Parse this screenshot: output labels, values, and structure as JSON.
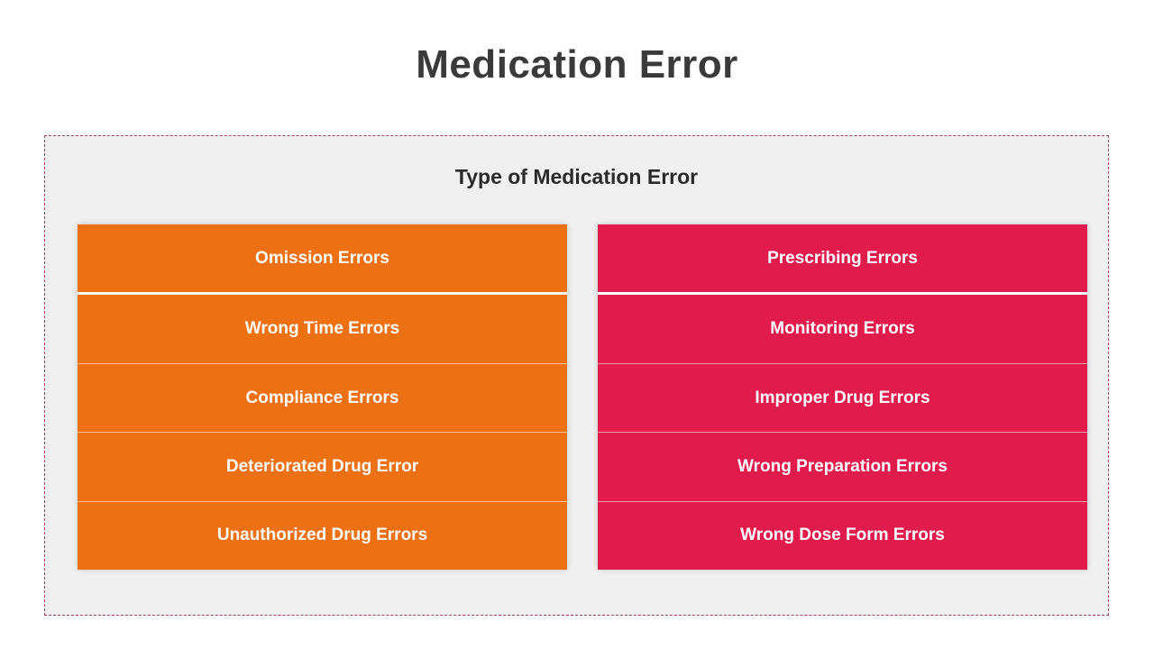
{
  "title": "Medication Error",
  "panel": {
    "subtitle": "Type of Medication Error"
  },
  "colors": {
    "left_column": "#ED7012",
    "right_column": "#E11C4C",
    "title_text": "#3A3A3A",
    "panel_background": "#F0F0F0",
    "panel_border": "#A0425A"
  },
  "left_column": {
    "items": [
      "Omission Errors",
      "Wrong Time Errors",
      "Compliance Errors",
      "Deteriorated Drug Error",
      "Unauthorized Drug Errors"
    ]
  },
  "right_column": {
    "items": [
      "Prescribing Errors",
      "Monitoring Errors",
      "Improper Drug Errors",
      "Wrong Preparation Errors",
      "Wrong Dose Form Errors"
    ]
  }
}
